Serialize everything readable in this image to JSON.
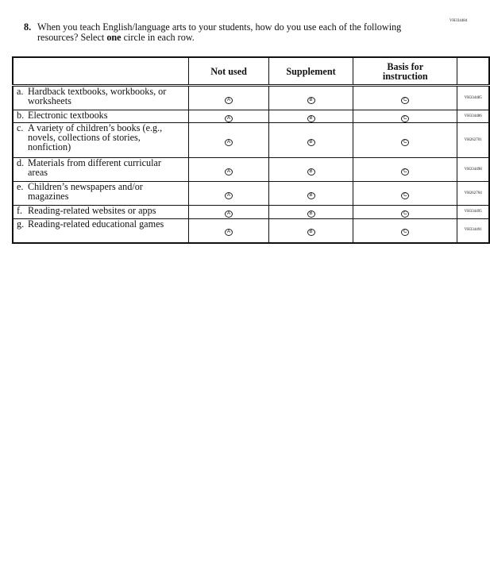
{
  "question_id": "VH334484",
  "question": {
    "number": "8.",
    "text_before": "When you teach English/language arts to your students, how do you use each of the following resources? Select ",
    "bold": "one",
    "text_after": " circle in each row."
  },
  "columns": [
    "Not used",
    "Supplement",
    "Basis for instruction"
  ],
  "bubble_letters": [
    "A",
    "B",
    "C"
  ],
  "rows": [
    {
      "letter": "a.",
      "label": "Hardback textbooks, workbooks, or worksheets",
      "id": "VH334485"
    },
    {
      "letter": "b.",
      "label": "Electronic textbooks",
      "id": "VH334486"
    },
    {
      "letter": "c.",
      "label": "A variety of children’s books (e.g., novels, collections of stories, nonfiction)",
      "id": "VH262701"
    },
    {
      "letter": "d.",
      "label": "Materials from different curricular areas",
      "id": "VH334498"
    },
    {
      "letter": "e.",
      "label": "Children’s newspapers and/or magazines",
      "id": "VH262704"
    },
    {
      "letter": "f.",
      "label": "Reading-related websites or apps",
      "id": "VH334495"
    },
    {
      "letter": "g.",
      "label": "Reading-related educational games",
      "id": "VH334491"
    }
  ]
}
